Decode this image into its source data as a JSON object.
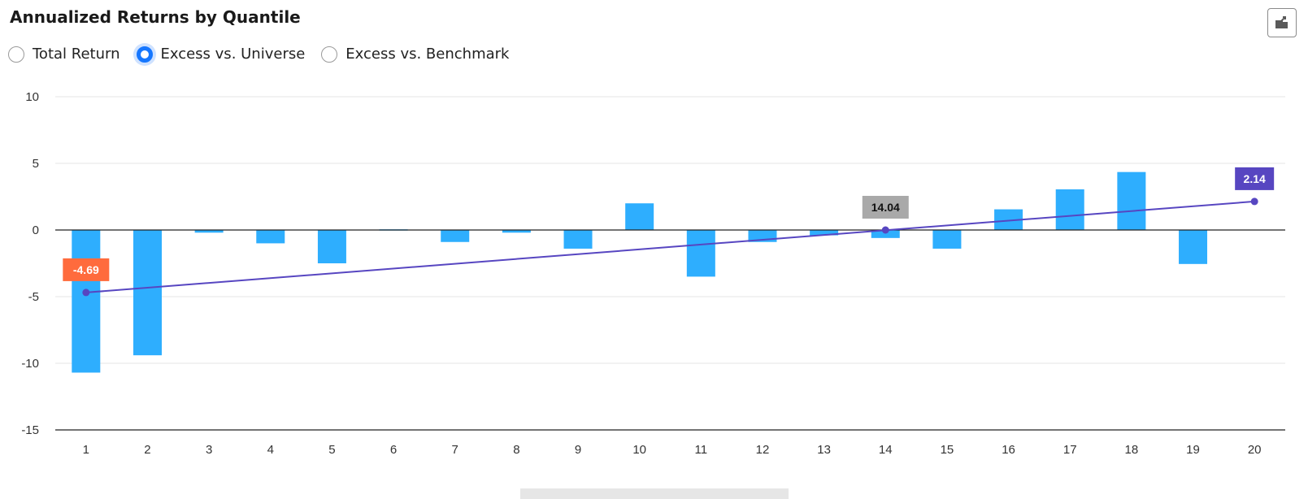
{
  "title": "Annualized Returns by Quantile",
  "radio_options": [
    {
      "label": "Total Return",
      "selected": false
    },
    {
      "label": "Excess vs. Universe",
      "selected": true
    },
    {
      "label": "Excess vs. Benchmark",
      "selected": false
    }
  ],
  "export_icon": "export-icon",
  "colors": {
    "bar": "#2eaefe",
    "trend_line": "#5746c1",
    "label_start": "#ff6b3d",
    "label_mid": "#a9a9a9",
    "label_end": "#5746c1",
    "grid": "#e6e6e6",
    "axis": "#222222"
  },
  "chart_data": {
    "type": "bar",
    "categories": [
      "1",
      "2",
      "3",
      "4",
      "5",
      "6",
      "7",
      "8",
      "9",
      "10",
      "11",
      "12",
      "13",
      "14",
      "15",
      "16",
      "17",
      "18",
      "19",
      "20"
    ],
    "values": [
      -10.7,
      -9.4,
      -0.2,
      -1.0,
      -2.5,
      0.05,
      -0.9,
      -0.2,
      -1.4,
      2.0,
      -3.5,
      -0.9,
      -0.4,
      -0.6,
      -1.4,
      1.55,
      3.05,
      4.35,
      -2.55,
      0.0
    ],
    "trend_line": {
      "start": {
        "category": "1",
        "value": -4.69,
        "label": "-4.69"
      },
      "mid": {
        "category": "14",
        "value": 0.0,
        "label": "14.04"
      },
      "end": {
        "category": "20",
        "value": 2.14,
        "label": "2.14"
      }
    },
    "yticks": [
      10,
      5,
      0,
      -5,
      -10,
      -15
    ],
    "ylim": [
      -15,
      10
    ],
    "grid": true,
    "title": "Annualized Returns by Quantile",
    "xlabel": "",
    "ylabel": ""
  }
}
